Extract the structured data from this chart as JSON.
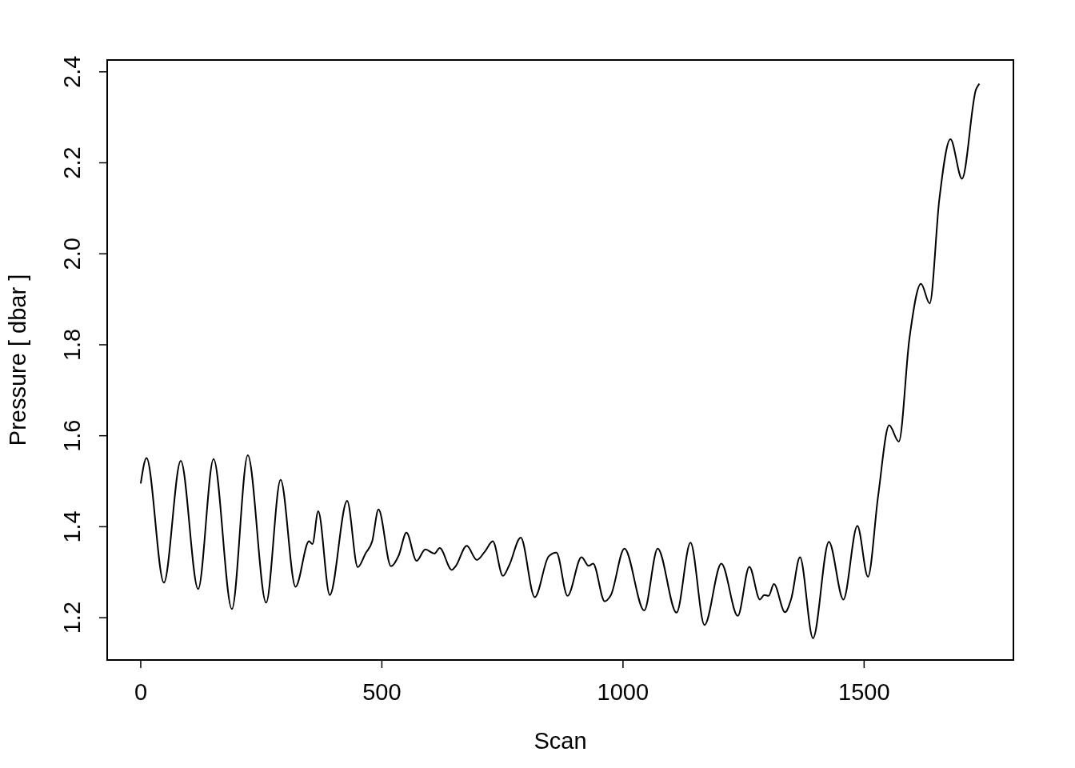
{
  "chart_data": {
    "type": "line",
    "xlabel": "Scan",
    "ylabel": "Pressure [ dbar ]",
    "x": [
      0,
      12,
      48,
      83,
      119,
      151,
      189,
      222,
      260,
      290,
      321,
      349,
      356,
      368,
      392,
      428,
      450,
      466,
      480,
      493,
      519,
      535,
      551,
      572,
      590,
      609,
      620,
      645,
      653,
      676,
      697,
      714,
      730,
      751,
      764,
      788,
      817,
      846,
      862,
      885,
      914,
      929,
      938,
      962,
      975,
      1003,
      1044,
      1072,
      1111,
      1140,
      1169,
      1204,
      1238,
      1262,
      1284,
      1293,
      1302,
      1313,
      1336,
      1349,
      1367,
      1394,
      1427,
      1457,
      1486,
      1508,
      1529,
      1552,
      1572,
      1594,
      1618,
      1636,
      1656,
      1679,
      1703,
      1732,
      1739
    ],
    "series": [
      {
        "color": "#000000",
        "values": [
          1.495,
          1.551,
          1.277,
          1.545,
          1.263,
          1.549,
          1.219,
          1.557,
          1.233,
          1.503,
          1.268,
          1.368,
          1.362,
          1.434,
          1.25,
          1.457,
          1.311,
          1.341,
          1.368,
          1.438,
          1.313,
          1.337,
          1.387,
          1.325,
          1.35,
          1.341,
          1.353,
          1.305,
          1.313,
          1.358,
          1.327,
          1.346,
          1.368,
          1.292,
          1.315,
          1.376,
          1.245,
          1.335,
          1.343,
          1.248,
          1.333,
          1.314,
          1.319,
          1.236,
          1.25,
          1.352,
          1.216,
          1.352,
          1.211,
          1.365,
          1.184,
          1.319,
          1.204,
          1.312,
          1.24,
          1.25,
          1.248,
          1.274,
          1.212,
          1.242,
          1.333,
          1.155,
          1.367,
          1.24,
          1.402,
          1.29,
          1.467,
          1.623,
          1.587,
          1.814,
          1.934,
          1.891,
          2.12,
          2.252,
          2.165,
          2.361,
          2.374
        ]
      }
    ],
    "xlim": [
      -69.6,
      1809.6
    ],
    "ylim": [
      1.107,
      2.426
    ],
    "xticks": [
      0,
      500,
      1000,
      1500
    ],
    "yticks": [
      1.2,
      1.4,
      1.6,
      1.8,
      {
        "value": 2,
        "label": "2.0"
      },
      2.2,
      2.4
    ],
    "grid": false,
    "marker": "none",
    "line_style": "solid"
  }
}
